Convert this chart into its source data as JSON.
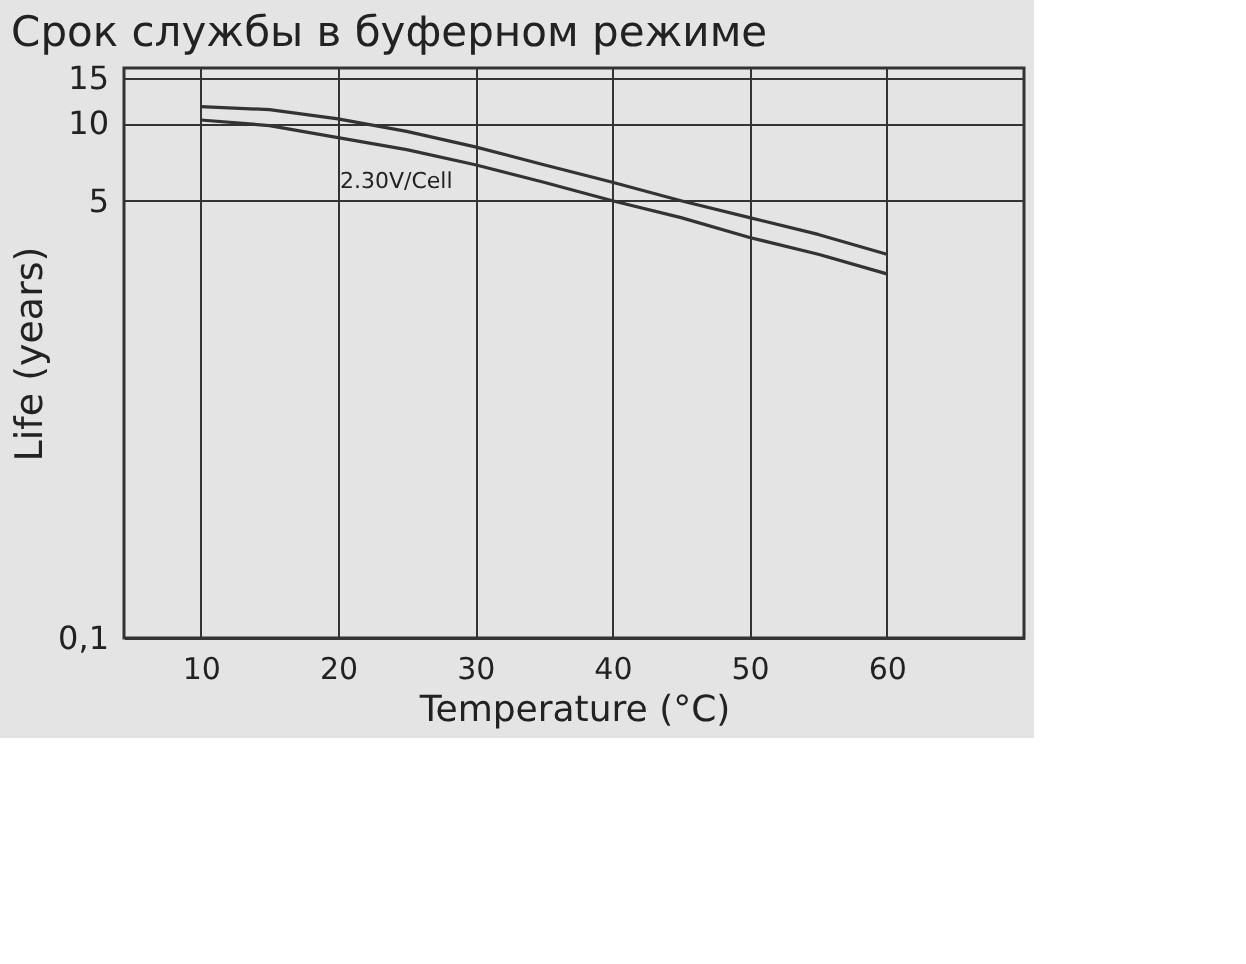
{
  "chart_data": {
    "type": "line",
    "title": "Срок службы в буферном режиме",
    "xlabel": "Temperature (°C)",
    "ylabel": "Life (years)",
    "x": [
      10,
      15,
      20,
      25,
      30,
      35,
      40,
      45,
      50,
      55,
      60
    ],
    "series": [
      {
        "color": "#333333",
        "values": [
          11.6,
          11.3,
          10.4,
          9.3,
          8.1,
          6.9,
          5.9,
          5.0,
          4.3,
          3.7,
          3.1
        ]
      },
      {
        "color": "#333333",
        "values": [
          10.3,
          9.8,
          8.8,
          7.9,
          6.9,
          5.9,
          5.0,
          4.3,
          3.6,
          3.1,
          2.6
        ]
      }
    ],
    "xlim": [
      4.4,
      70
    ],
    "xticks": [
      10,
      20,
      30,
      40,
      50,
      60
    ],
    "ylim": [
      0.1,
      16.4
    ],
    "yticks": [
      15,
      10,
      5,
      {
        "value": 0.1,
        "label": "0,1"
      }
    ],
    "log": "y",
    "grid": true,
    "line_style": "solid",
    "marker": "none",
    "annotations": [
      "2.30V/Cell"
    ]
  }
}
